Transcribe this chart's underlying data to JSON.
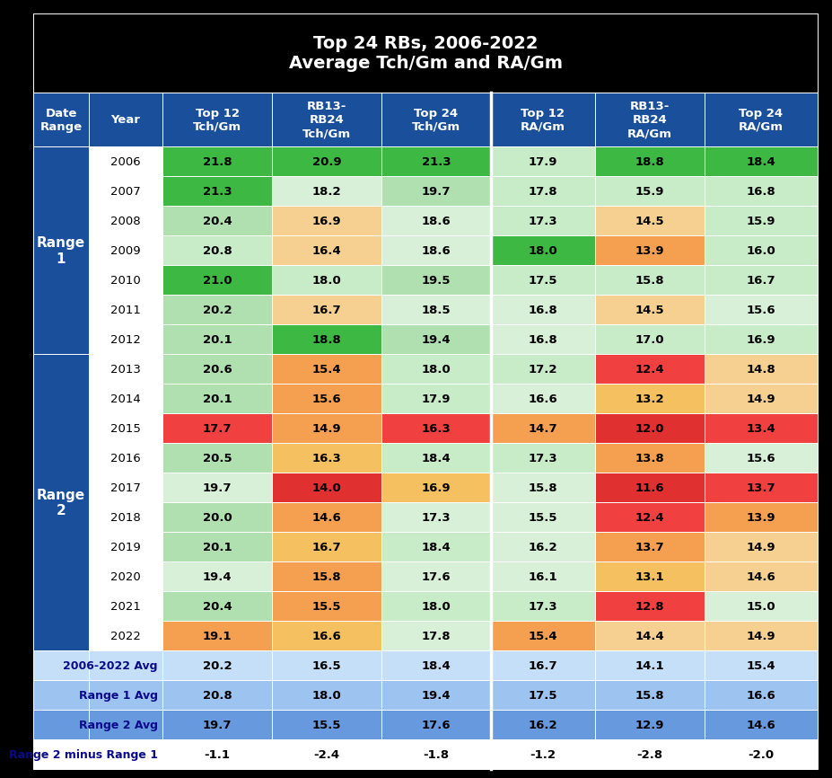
{
  "title_line1": "Top 24 RBs, 2006-2022",
  "title_line2": "Average Tch/Gm and RA/Gm",
  "col_headers": [
    "Date\nRange",
    "Year",
    "Top 12\nTch/Gm",
    "RB13-\nRB24\nTch/Gm",
    "Top 24\nTch/Gm",
    "Top 12\nRA/Gm",
    "RB13-\nRB24\nRA/Gm",
    "Top 24\nRA/Gm"
  ],
  "rows": [
    [
      "Range 1",
      "2006",
      "21.8",
      "20.9",
      "21.3",
      "17.9",
      "18.8",
      "18.4"
    ],
    [
      "Range 1",
      "2007",
      "21.3",
      "18.2",
      "19.7",
      "17.8",
      "15.9",
      "16.8"
    ],
    [
      "Range 1",
      "2008",
      "20.4",
      "16.9",
      "18.6",
      "17.3",
      "14.5",
      "15.9"
    ],
    [
      "Range 1",
      "2009",
      "20.8",
      "16.4",
      "18.6",
      "18.0",
      "13.9",
      "16.0"
    ],
    [
      "Range 1",
      "2010",
      "21.0",
      "18.0",
      "19.5",
      "17.5",
      "15.8",
      "16.7"
    ],
    [
      "Range 1",
      "2011",
      "20.2",
      "16.7",
      "18.5",
      "16.8",
      "14.5",
      "15.6"
    ],
    [
      "Range 1",
      "2012",
      "20.1",
      "18.8",
      "19.4",
      "16.8",
      "17.0",
      "16.9"
    ],
    [
      "Range 2",
      "2013",
      "20.6",
      "15.4",
      "18.0",
      "17.2",
      "12.4",
      "14.8"
    ],
    [
      "Range 2",
      "2014",
      "20.1",
      "15.6",
      "17.9",
      "16.6",
      "13.2",
      "14.9"
    ],
    [
      "Range 2",
      "2015",
      "17.7",
      "14.9",
      "16.3",
      "14.7",
      "12.0",
      "13.4"
    ],
    [
      "Range 2",
      "2016",
      "20.5",
      "16.3",
      "18.4",
      "17.3",
      "13.8",
      "15.6"
    ],
    [
      "Range 2",
      "2017",
      "19.7",
      "14.0",
      "16.9",
      "15.8",
      "11.6",
      "13.7"
    ],
    [
      "Range 2",
      "2018",
      "20.0",
      "14.6",
      "17.3",
      "15.5",
      "12.4",
      "13.9"
    ],
    [
      "Range 2",
      "2019",
      "20.1",
      "16.7",
      "18.4",
      "16.2",
      "13.7",
      "14.9"
    ],
    [
      "Range 2",
      "2020",
      "19.4",
      "15.8",
      "17.6",
      "16.1",
      "13.1",
      "14.6"
    ],
    [
      "Range 2",
      "2021",
      "20.4",
      "15.5",
      "18.0",
      "17.3",
      "12.8",
      "15.0"
    ],
    [
      "Range 2",
      "2022",
      "19.1",
      "16.6",
      "17.8",
      "15.4",
      "14.4",
      "14.9"
    ]
  ],
  "summary_rows": [
    [
      "2006-2022 Avg",
      "20.2",
      "16.5",
      "18.4",
      "16.7",
      "14.1",
      "15.4"
    ],
    [
      "Range 1 Avg",
      "20.8",
      "18.0",
      "19.4",
      "17.5",
      "15.8",
      "16.6"
    ],
    [
      "Range 2 Avg",
      "19.7",
      "15.5",
      "17.6",
      "16.2",
      "12.9",
      "14.6"
    ],
    [
      "Range 2 minus Range 1",
      "-1.1",
      "-2.4",
      "-1.8",
      "-1.2",
      "-2.8",
      "-2.0"
    ]
  ],
  "header_bg": "#1a4f9c",
  "header_fg": "#ffffff",
  "title_bg": "#000000",
  "title_fg": "#ffffff",
  "range_label_bg": "#1a4f9c",
  "range_label_fg": "#ffffff",
  "year_col_bg": "#ffffff",
  "year_col_fg": "#000000",
  "summary_bg": [
    "#c5dff8",
    "#9dc3f0",
    "#6699dd",
    "#ffffff"
  ],
  "summary_label_fg": "#0a0a8a",
  "tch_cell_colors": {
    "2006": [
      "#3db843",
      "#3db843",
      "#3db843"
    ],
    "2007": [
      "#3db843",
      "#d8f0d8",
      "#b0e0b0"
    ],
    "2008": [
      "#b0e0b0",
      "#f5d090",
      "#d8f0d8"
    ],
    "2009": [
      "#c8ecc8",
      "#f5d090",
      "#d8f0d8"
    ],
    "2010": [
      "#3db843",
      "#c8ecc8",
      "#b0e0b0"
    ],
    "2011": [
      "#b0e0b0",
      "#f5d090",
      "#d8f0d8"
    ],
    "2012": [
      "#b0e0b0",
      "#3db843",
      "#b0e0b0"
    ],
    "2013": [
      "#b0e0b0",
      "#f5a050",
      "#c8ecc8"
    ],
    "2014": [
      "#b0e0b0",
      "#f5a050",
      "#c8ecc8"
    ],
    "2015": [
      "#f04040",
      "#f5a050",
      "#f04040"
    ],
    "2016": [
      "#b0e0b0",
      "#f5c060",
      "#c8ecc8"
    ],
    "2017": [
      "#d8f0d8",
      "#e03030",
      "#f5c060"
    ],
    "2018": [
      "#b0e0b0",
      "#f5a050",
      "#d8f0d8"
    ],
    "2019": [
      "#b0e0b0",
      "#f5c060",
      "#c8ecc8"
    ],
    "2020": [
      "#d8f0d8",
      "#f5a050",
      "#d8f0d8"
    ],
    "2021": [
      "#b0e0b0",
      "#f5a050",
      "#c8ecc8"
    ],
    "2022": [
      "#f5a050",
      "#f5c060",
      "#d8f0d8"
    ]
  },
  "ra_cell_colors": {
    "2006": [
      "#c8ecc8",
      "#3db843",
      "#3db843"
    ],
    "2007": [
      "#c8ecc8",
      "#c8ecc8",
      "#c8ecc8"
    ],
    "2008": [
      "#c8ecc8",
      "#f5d090",
      "#c8ecc8"
    ],
    "2009": [
      "#3db843",
      "#f5a050",
      "#c8ecc8"
    ],
    "2010": [
      "#c8ecc8",
      "#c8ecc8",
      "#c8ecc8"
    ],
    "2011": [
      "#d8f0d8",
      "#f5d090",
      "#d8f0d8"
    ],
    "2012": [
      "#d8f0d8",
      "#c8ecc8",
      "#c8ecc8"
    ],
    "2013": [
      "#c8ecc8",
      "#f04040",
      "#f5d090"
    ],
    "2014": [
      "#d8f0d8",
      "#f5c060",
      "#f5d090"
    ],
    "2015": [
      "#f5a050",
      "#e03030",
      "#f04040"
    ],
    "2016": [
      "#c8ecc8",
      "#f5a050",
      "#d8f0d8"
    ],
    "2017": [
      "#d8f0d8",
      "#e03030",
      "#f04040"
    ],
    "2018": [
      "#d8f0d8",
      "#f04040",
      "#f5a050"
    ],
    "2019": [
      "#d8f0d8",
      "#f5a050",
      "#f5d090"
    ],
    "2020": [
      "#d8f0d8",
      "#f5c060",
      "#f5d090"
    ],
    "2021": [
      "#c8ecc8",
      "#f04040",
      "#d8f0d8"
    ],
    "2022": [
      "#f5a050",
      "#f5d090",
      "#f5d090"
    ]
  }
}
